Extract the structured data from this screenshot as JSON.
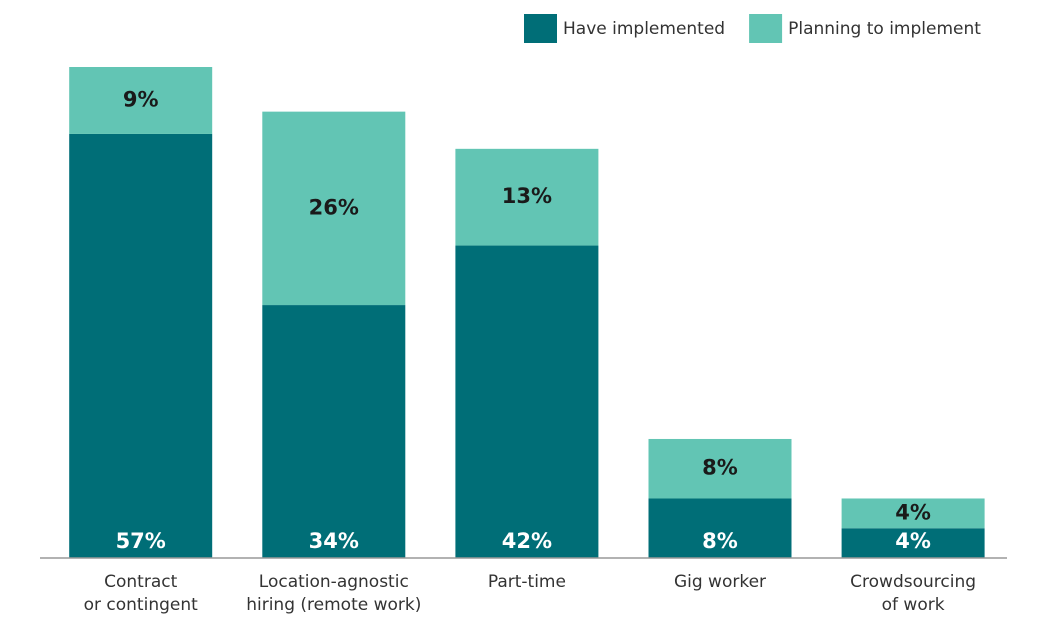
{
  "chart_data": {
    "type": "stacked_bar",
    "categories": [
      [
        "Contract",
        "or contingent"
      ],
      [
        "Location-agnostic",
        "hiring (remote work)"
      ],
      [
        "Part-time"
      ],
      [
        "Gig worker"
      ],
      [
        "Crowdsourcing",
        "of work"
      ]
    ],
    "series": [
      {
        "name": "Have implemented",
        "color": "#006e77",
        "values": [
          57,
          34,
          42,
          8,
          4
        ],
        "value_labels": [
          "57%",
          "34%",
          "42%",
          "8%",
          "4%"
        ]
      },
      {
        "name": "Planning to implement",
        "color": "#62c5b4",
        "values": [
          9,
          26,
          13,
          8,
          4
        ],
        "value_labels": [
          "9%",
          "26%",
          "13%",
          "8%",
          "4%"
        ]
      }
    ],
    "legend": "top-right"
  }
}
